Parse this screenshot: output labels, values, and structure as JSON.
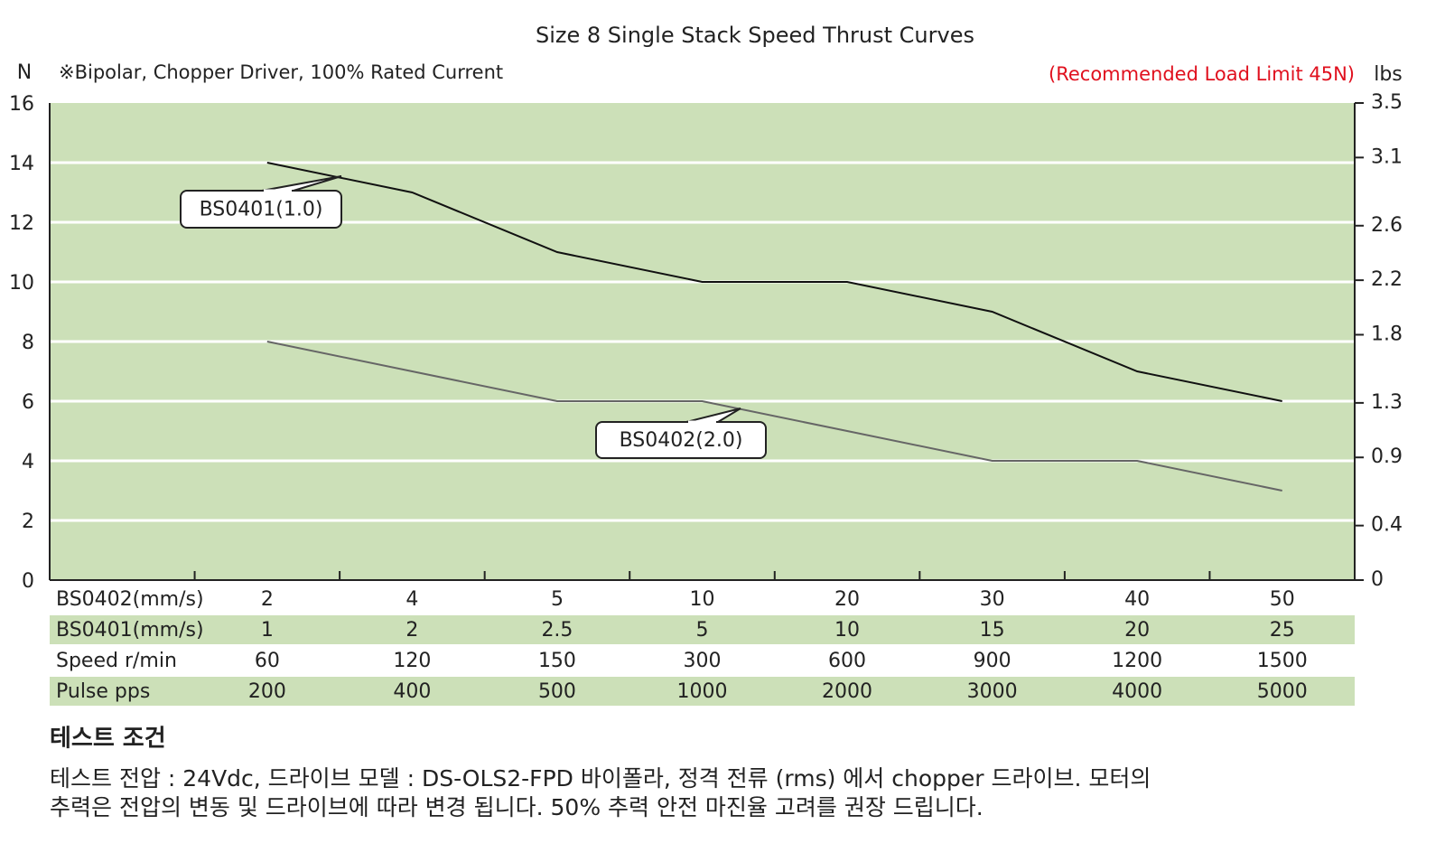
{
  "chart_data": {
    "type": "line",
    "title": "Size 8 Single Stack Speed Thrust Curves",
    "y_label": "N",
    "y2_label": "lbs",
    "subtitle": "※Bipolar, Chopper Driver, 100% Rated Current",
    "annotation": "(Recommended Load Limit 45N)",
    "ylim": [
      0,
      16
    ],
    "yticks": [
      0,
      2,
      4,
      6,
      8,
      10,
      12,
      14,
      16
    ],
    "y2lim": [
      0,
      3.5
    ],
    "y2ticks": [
      0,
      0.4,
      0.9,
      1.3,
      1.8,
      2.2,
      2.6,
      3.1,
      3.5
    ],
    "grid": true,
    "table_rows": [
      {
        "label": "BS0402(mm/s)",
        "values": [
          "2",
          "4",
          "5",
          "10",
          "20",
          "30",
          "40",
          "50"
        ]
      },
      {
        "label": "BS0401(mm/s)",
        "values": [
          "1",
          "2",
          "2.5",
          "5",
          "10",
          "15",
          "20",
          "25"
        ]
      },
      {
        "label": "Speed r/min",
        "values": [
          "60",
          "120",
          "150",
          "300",
          "600",
          "900",
          "1200",
          "1500"
        ]
      },
      {
        "label": "Pulse  pps",
        "values": [
          "200",
          "400",
          "500",
          "1000",
          "2000",
          "3000",
          "4000",
          "5000"
        ]
      }
    ],
    "series": [
      {
        "name": "BS0401(1.0)",
        "color": "#111111",
        "values": [
          14,
          13,
          11,
          10,
          10,
          9,
          7,
          6
        ]
      },
      {
        "name": "BS0402(2.0)",
        "color": "#666666",
        "values": [
          8,
          7,
          6,
          6,
          5,
          4,
          4,
          3
        ]
      }
    ]
  },
  "notes": {
    "heading": "테스트 조건",
    "lines": [
      "테스트 전압 : 24Vdc, 드라이브 모델 : DS-OLS2-FPD 바이폴라, 정격 전류 (rms) 에서 chopper 드라이브. 모터의",
      "추력은 전압의 변동 및 드라이브에 따라 변경 됩니다. 50% 추력 안전 마진율 고려를 권장 드립니다."
    ]
  }
}
